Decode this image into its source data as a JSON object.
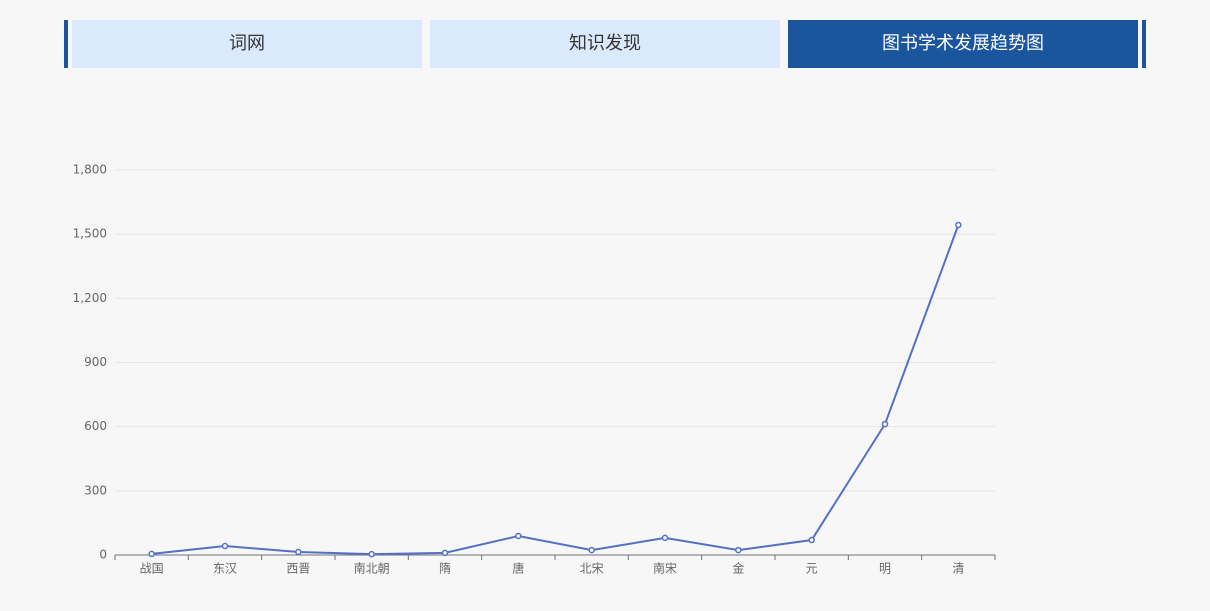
{
  "tabs": [
    "词网",
    "知识发现",
    "图书学术发展趋势图"
  ],
  "chart_data": {
    "type": "line",
    "categories": [
      "战国",
      "东汉",
      "西晋",
      "南北朝",
      "隋",
      "唐",
      "北宋",
      "南宋",
      "金",
      "元",
      "明",
      "清"
    ],
    "values": [
      5,
      42,
      14,
      4,
      10,
      89,
      23,
      80,
      23,
      70,
      612,
      1543
    ],
    "color": "#5470c6",
    "ylim": [
      0,
      1800
    ],
    "yticks": [
      0,
      300,
      600,
      900,
      {
        "value": 1200,
        "label": "1,200"
      },
      {
        "value": 1500,
        "label": "1,500"
      },
      {
        "value": 1800,
        "label": "1,800"
      }
    ],
    "grid": true
  }
}
